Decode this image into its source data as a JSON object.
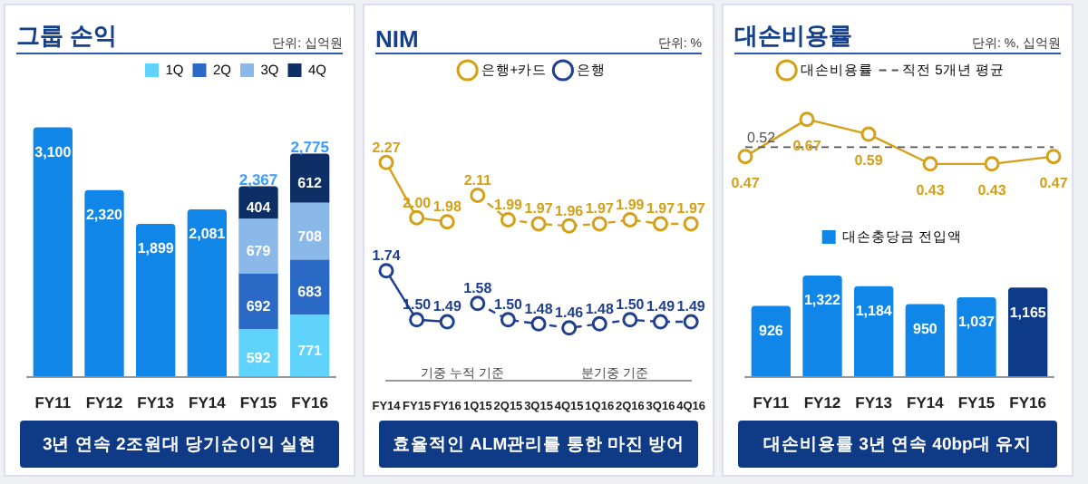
{
  "chart_data": [
    {
      "type": "bar",
      "title": "그룹 손익",
      "subtitle": "단위: 십억원",
      "categories": [
        "FY11",
        "FY12",
        "FY13",
        "FY14",
        "FY15",
        "FY16"
      ],
      "stacked": true,
      "data_labels": true,
      "legend": "top right",
      "grid": false,
      "tick_labels": "x",
      "series": [
        {
          "color": "#0f86e8",
          "values": [
            3100,
            2320,
            1899,
            2081,
            null,
            null
          ],
          "value_labels": [
            "3,100",
            "2,320",
            "1,899",
            "2,081",
            null,
            null
          ]
        },
        {
          "name": "1Q",
          "color": "#5fd3fb",
          "values": [
            null,
            null,
            null,
            null,
            592,
            771
          ]
        },
        {
          "name": "2Q",
          "color": "#2a6ac6",
          "values": [
            null,
            null,
            null,
            null,
            692,
            683
          ]
        },
        {
          "name": "3Q",
          "color": "#8ab8e8",
          "values": [
            null,
            null,
            null,
            null,
            679,
            708
          ]
        },
        {
          "name": "4Q",
          "color": "#0e2f66",
          "values": [
            null,
            null,
            null,
            null,
            404,
            612
          ]
        }
      ],
      "totals": [
        null,
        null,
        null,
        null,
        "2,367",
        "2,775"
      ],
      "annotations": [
        "3년 연속 2조원대 당기순이익 실현"
      ]
    },
    {
      "type": "line",
      "title": "NIM",
      "subtitle": "단위: %",
      "categories": [
        "FY14",
        "FY15",
        "FY16",
        "1Q15",
        "2Q15",
        "3Q15",
        "4Q15",
        "1Q16",
        "2Q16",
        "3Q16",
        "4Q16"
      ],
      "marker": "circle",
      "legend": "top",
      "grid": false,
      "tick_labels": "x",
      "series": [
        {
          "name": "은행+카드",
          "color": "#d4a017",
          "line_style": "solid",
          "values": [
            2.27,
            2.0,
            1.98,
            null,
            null,
            null,
            null,
            null,
            null,
            null,
            null
          ],
          "value_labels": [
            "2.27",
            "2.00",
            "1.98",
            null,
            null,
            null,
            null,
            null,
            null,
            null,
            null
          ]
        },
        {
          "color": "#d4a017",
          "line_style": "dashed",
          "values": [
            null,
            null,
            null,
            2.11,
            1.99,
            1.97,
            1.96,
            1.97,
            1.99,
            1.97,
            1.97
          ],
          "value_labels": [
            null,
            null,
            null,
            "2.11",
            "1.99",
            "1.97",
            "1.96",
            "1.97",
            "1.99",
            "1.97",
            "1.97"
          ]
        },
        {
          "name": "은행",
          "color": "#1f3f8f",
          "line_style": "solid",
          "values": [
            1.74,
            1.5,
            1.49,
            null,
            null,
            null,
            null,
            null,
            null,
            null,
            null
          ],
          "value_labels": [
            "1.74",
            "1.50",
            "1.49",
            null,
            null,
            null,
            null,
            null,
            null,
            null,
            null
          ]
        },
        {
          "color": "#1f3f8f",
          "line_style": "dashed",
          "values": [
            null,
            null,
            null,
            1.58,
            1.5,
            1.48,
            1.46,
            1.48,
            1.5,
            1.49,
            1.49
          ],
          "value_labels": [
            null,
            null,
            null,
            "1.58",
            "1.50",
            "1.48",
            "1.46",
            "1.48",
            "1.50",
            "1.49",
            "1.49"
          ]
        }
      ],
      "annotations": [
        "기중 누적 기준",
        "분기중 기준",
        "효율적인 ALM관리를 통한 마진 방어"
      ]
    },
    {
      "type": "line",
      "title": "대손비용률",
      "subtitle": "단위: %, 십억원",
      "categories": [
        null,
        null,
        null,
        null,
        null,
        null
      ],
      "marker": "circle",
      "legend": "top",
      "grid": false,
      "tick_labels": false,
      "series": [
        {
          "name": "대손비용률",
          "color": "#d4a017",
          "values": [
            0.47,
            0.67,
            0.59,
            0.43,
            0.43,
            0.47
          ],
          "value_labels": [
            "0.47",
            "0.67",
            "0.59",
            "0.43",
            "0.43",
            "0.47"
          ]
        }
      ],
      "ref_lines": [
        {
          "axis": "y",
          "value": 0.52,
          "label": "직전 5개년 평균",
          "color": "#555555",
          "line_style": "dashed"
        }
      ],
      "annotations": [
        {
          "text": "0.52",
          "y": 0.52
        }
      ]
    },
    {
      "type": "bar",
      "categories": [
        "FY11",
        "FY12",
        "FY13",
        "FY14",
        "FY15",
        "FY16"
      ],
      "legend": "top",
      "grid": false,
      "tick_labels": "x",
      "series": [
        {
          "name": "대손충당금 전입액",
          "color": "#0f86e8",
          "colors": [
            "#0f86e8",
            "#0f86e8",
            "#0f86e8",
            "#0f86e8",
            "#0f86e8",
            "#0e3a8a"
          ],
          "values": [
            926,
            1322,
            1184,
            950,
            1037,
            1165
          ],
          "value_labels": [
            "926",
            "1,322",
            "1,184",
            "950",
            "1,037",
            "1,165"
          ]
        }
      ],
      "annotations": [
        "대손비용률 3년 연속 40bp대 유지"
      ]
    }
  ]
}
